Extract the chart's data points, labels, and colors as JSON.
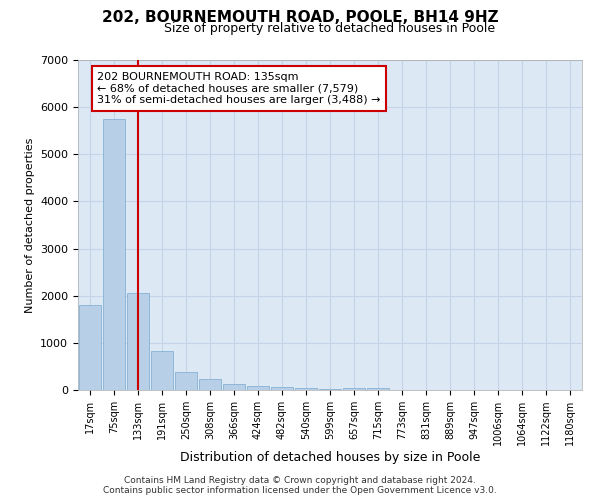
{
  "title": "202, BOURNEMOUTH ROAD, POOLE, BH14 9HZ",
  "subtitle": "Size of property relative to detached houses in Poole",
  "xlabel": "Distribution of detached houses by size in Poole",
  "ylabel": "Number of detached properties",
  "categories": [
    "17sqm",
    "75sqm",
    "133sqm",
    "191sqm",
    "250sqm",
    "308sqm",
    "366sqm",
    "424sqm",
    "482sqm",
    "540sqm",
    "599sqm",
    "657sqm",
    "715sqm",
    "773sqm",
    "831sqm",
    "889sqm",
    "947sqm",
    "1006sqm",
    "1064sqm",
    "1122sqm",
    "1180sqm"
  ],
  "values": [
    1800,
    5750,
    2050,
    830,
    390,
    240,
    130,
    90,
    60,
    50,
    30,
    50,
    50,
    0,
    0,
    0,
    0,
    0,
    0,
    0,
    0
  ],
  "bar_color": "#b8cfe8",
  "bar_edge_color": "#7aaad0",
  "vline_x": 2,
  "vline_color": "#cc0000",
  "annotation_line1": "202 BOURNEMOUTH ROAD: 135sqm",
  "annotation_line2": "← 68% of detached houses are smaller (7,579)",
  "annotation_line3": "31% of semi-detached houses are larger (3,488) →",
  "annotation_box_color": "#ffffff",
  "annotation_box_edge": "#cc0000",
  "ylim": [
    0,
    7000
  ],
  "yticks": [
    0,
    1000,
    2000,
    3000,
    4000,
    5000,
    6000,
    7000
  ],
  "grid_color": "#c5d5e8",
  "bg_color": "#dde8f5",
  "footer_line1": "Contains HM Land Registry data © Crown copyright and database right 2024.",
  "footer_line2": "Contains public sector information licensed under the Open Government Licence v3.0."
}
